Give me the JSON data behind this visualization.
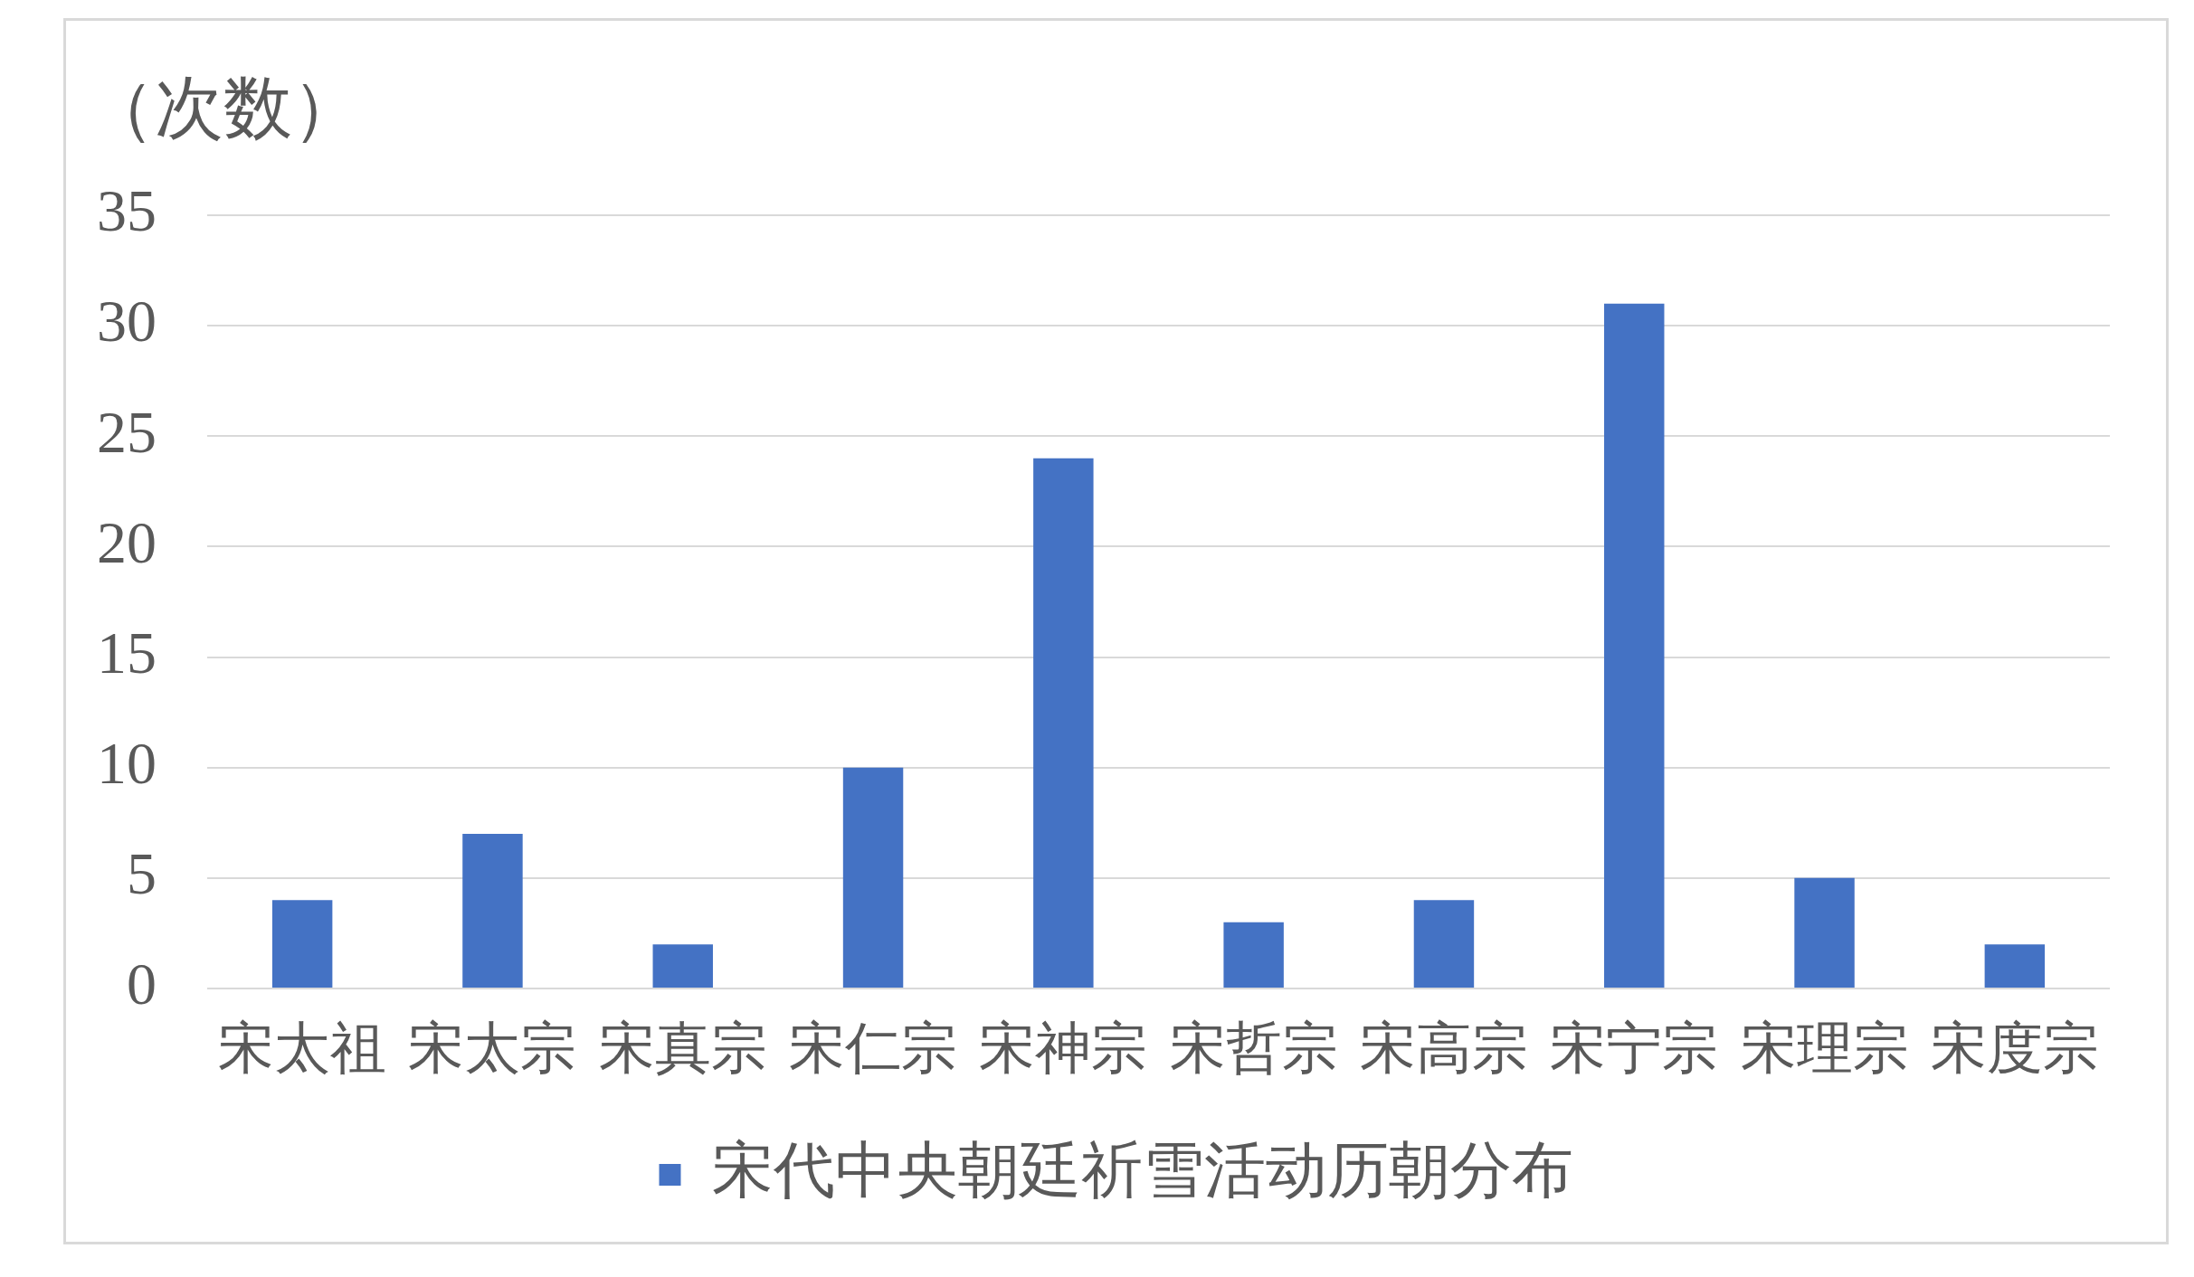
{
  "chart_data": {
    "type": "bar",
    "ylabel": "（次数）",
    "categories": [
      "宋太祖",
      "宋太宗",
      "宋真宗",
      "宋仁宗",
      "宋神宗",
      "宋哲宗",
      "宋高宗",
      "宋宁宗",
      "宋理宗",
      "宋度宗"
    ],
    "series": [
      {
        "name": "宋代中央朝廷祈雪活动历朝分布",
        "color": "#4472c4",
        "values": [
          4,
          7,
          2,
          10,
          24,
          3,
          4,
          31,
          5,
          2
        ]
      }
    ],
    "ylim": [
      0,
      35
    ],
    "yticks": [
      0,
      5,
      10,
      15,
      20,
      25,
      30,
      35
    ],
    "grid": "y",
    "legend": "bottom"
  }
}
